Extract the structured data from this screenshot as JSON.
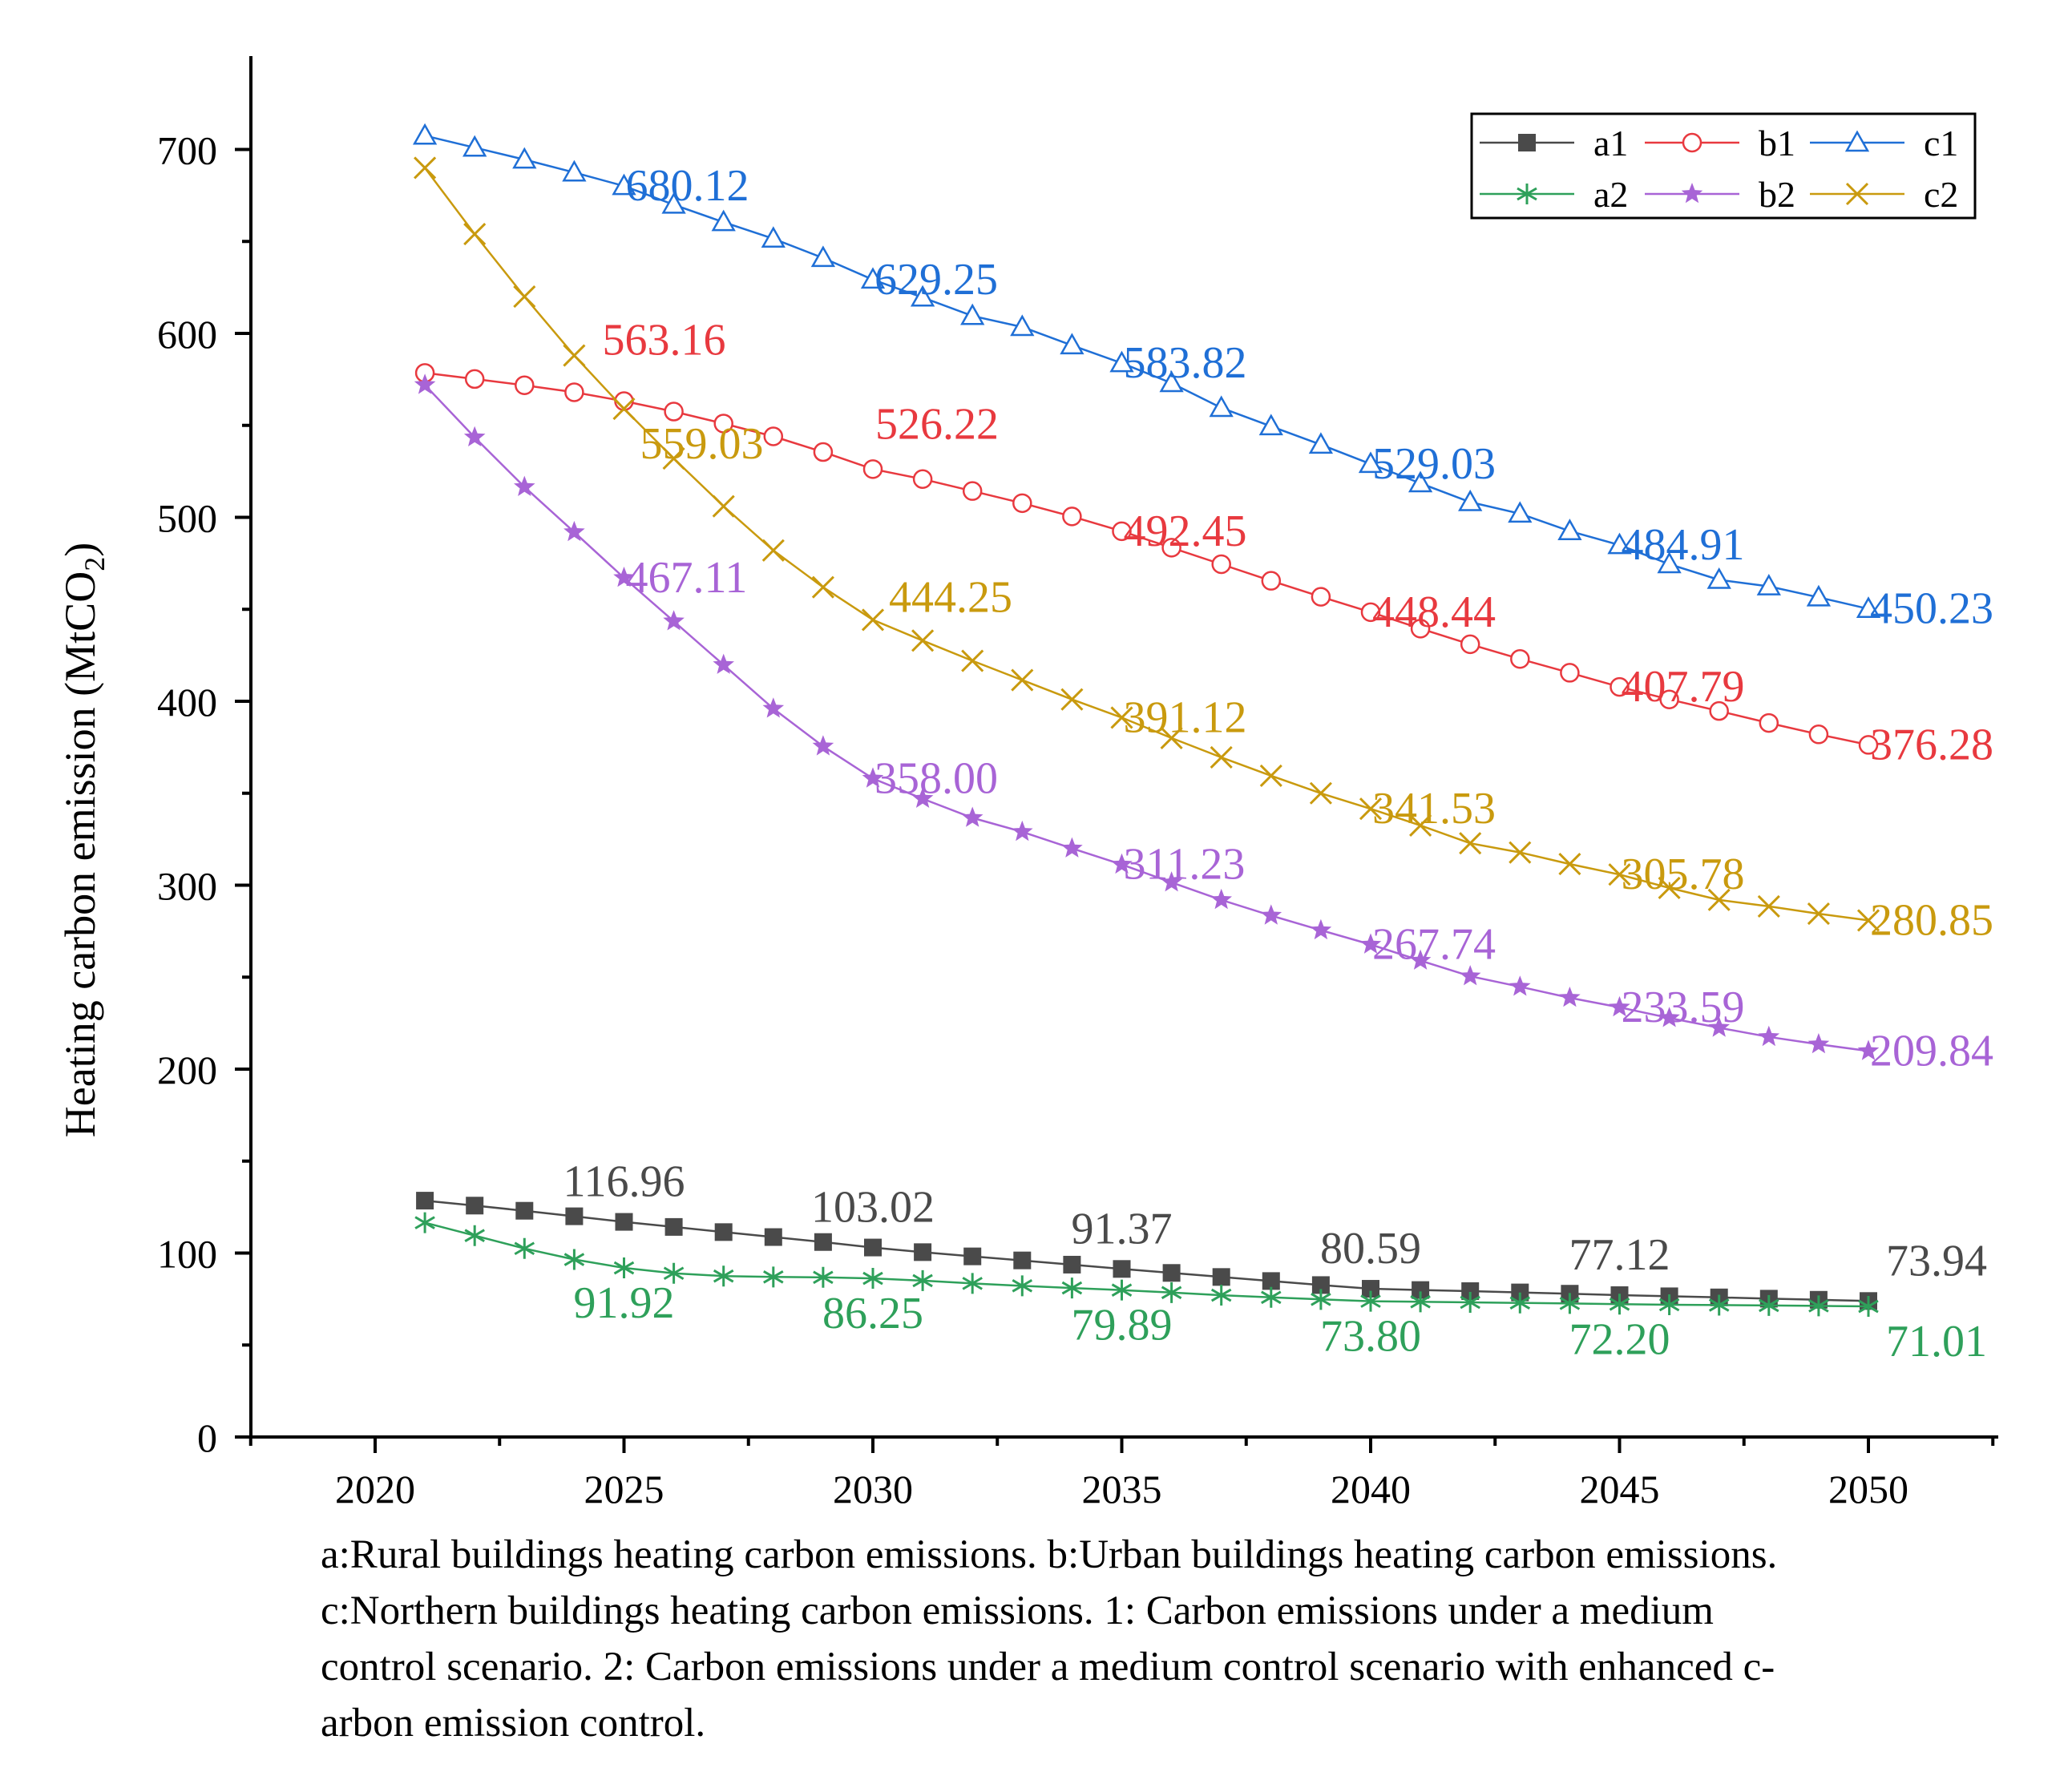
{
  "chart_data": {
    "type": "line",
    "ylabel": "Heating carbon emission (MtCO",
    "ylabel_subscript": "2",
    "ylabel_close": ")",
    "xlabel": "",
    "xlim": [
      2017.5,
      2052.5
    ],
    "ylim": [
      0,
      750
    ],
    "x_ticks": [
      2020,
      2025,
      2030,
      2035,
      2040,
      2045,
      2050
    ],
    "y_ticks": [
      0,
      100,
      200,
      300,
      400,
      500,
      600,
      700
    ],
    "legend_position": "top-right",
    "x": [
      2021,
      2022,
      2023,
      2024,
      2025,
      2026,
      2027,
      2028,
      2029,
      2030,
      2031,
      2032,
      2033,
      2034,
      2035,
      2036,
      2037,
      2038,
      2039,
      2040,
      2041,
      2042,
      2043,
      2044,
      2045,
      2046,
      2047,
      2048,
      2049,
      2050
    ],
    "series": [
      {
        "name": "a1",
        "color": "#4a4a4a",
        "marker": "square",
        "values": [
          128.5,
          125.8,
          123.0,
          120.0,
          116.96,
          114.2,
          111.4,
          108.7,
          106.0,
          103.02,
          100.5,
          98.2,
          96.0,
          93.7,
          91.37,
          89.2,
          87.0,
          84.8,
          82.6,
          80.59,
          79.9,
          79.3,
          78.6,
          77.9,
          77.12,
          76.5,
          75.9,
          75.2,
          74.6,
          73.94
        ],
        "labels": {
          "2025": "116.96",
          "2030": "103.02",
          "2035": "91.37",
          "2040": "80.59",
          "2045": "77.12",
          "2050": "73.94"
        }
      },
      {
        "name": "a2",
        "color": "#2ea05a",
        "marker": "asterisk",
        "values": [
          116.5,
          109.5,
          102.5,
          96.5,
          91.92,
          89.0,
          87.5,
          87.0,
          86.8,
          86.25,
          85.0,
          83.5,
          82.2,
          81.0,
          79.89,
          78.5,
          77.1,
          75.9,
          74.8,
          73.8,
          73.5,
          73.2,
          72.9,
          72.6,
          72.2,
          71.9,
          71.7,
          71.5,
          71.3,
          71.01
        ],
        "labels": {
          "2025": "91.92",
          "2030": "86.25",
          "2035": "79.89",
          "2040": "73.80",
          "2045": "72.20",
          "2050": "71.01"
        }
      },
      {
        "name": "b1",
        "color": "#e8393f",
        "marker": "circle",
        "values": [
          578.5,
          575.2,
          571.8,
          568.0,
          563.16,
          557.5,
          551.0,
          544.0,
          535.5,
          526.22,
          520.8,
          514.3,
          507.7,
          500.5,
          492.45,
          483.5,
          474.5,
          465.5,
          456.8,
          448.44,
          439.5,
          431.0,
          423.0,
          415.5,
          407.79,
          401.0,
          394.7,
          388.2,
          382.0,
          376.28
        ],
        "labels": {
          "2025": "563.16",
          "2030": "526.22",
          "2035": "492.45",
          "2040": "448.44",
          "2045": "407.79",
          "2050": "376.28"
        }
      },
      {
        "name": "b2",
        "color": "#a864d6",
        "marker": "star",
        "values": [
          572.0,
          543.5,
          516.5,
          492.0,
          467.11,
          443.5,
          419.8,
          396.0,
          375.5,
          358.0,
          347.0,
          336.6,
          329.0,
          320.0,
          311.23,
          301.5,
          292.0,
          283.5,
          275.5,
          267.74,
          259.0,
          250.5,
          244.8,
          238.8,
          233.59,
          227.8,
          222.5,
          217.5,
          213.5,
          209.84
        ],
        "labels": {
          "2025": "467.11",
          "2030": "358.00",
          "2035": "311.23",
          "2040": "267.74",
          "2045": "233.59",
          "2050": "209.84"
        }
      },
      {
        "name": "c1",
        "color": "#1f6fd6",
        "marker": "triangle",
        "values": [
          707.5,
          701.0,
          694.5,
          687.5,
          680.12,
          670.0,
          660.5,
          651.5,
          641.0,
          629.25,
          619.5,
          609.5,
          603.5,
          593.5,
          583.82,
          573.0,
          559.5,
          549.5,
          539.5,
          529.03,
          518.5,
          508.3,
          502.0,
          492.5,
          484.91,
          474.5,
          466.0,
          462.5,
          456.5,
          450.23
        ],
        "labels": {
          "2025": "680.12",
          "2030": "629.25",
          "2035": "583.82",
          "2040": "529.03",
          "2045": "484.91",
          "2050": "450.23"
        }
      },
      {
        "name": "c2",
        "color": "#c99a0e",
        "marker": "x",
        "values": [
          690.0,
          654.0,
          620.0,
          588.0,
          559.03,
          532.0,
          506.0,
          482.0,
          462.0,
          444.25,
          433.0,
          422.0,
          411.5,
          401.0,
          391.12,
          380.0,
          369.5,
          359.5,
          350.0,
          341.53,
          332.5,
          322.8,
          317.8,
          311.5,
          305.78,
          298.5,
          292.0,
          288.5,
          284.5,
          280.85
        ],
        "labels": {
          "2025": "559.03",
          "2030": "444.25",
          "2035": "391.12",
          "2040": "341.53",
          "2045": "305.78",
          "2050": "280.85"
        }
      }
    ]
  },
  "caption": {
    "line1": "a:Rural buildings heating carbon emissions. b:Urban buildings heating carbon emissions.",
    "line2": "c:Northern buildings heating carbon emissions.      1: Carbon emissions under a medium",
    "line3": "control scenario. 2: Carbon emissions under a medium control scenario with enhanced c-",
    "line4": "arbon emission control."
  }
}
